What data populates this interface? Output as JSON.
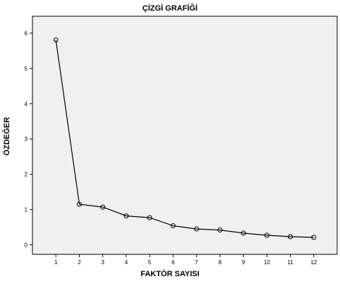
{
  "chart_data": {
    "type": "line",
    "title": "ÇİZGİ GRAFİĞİ",
    "xlabel": "FAKTÖR SAYISI",
    "ylabel": "ÖZDEĞER",
    "x": [
      1,
      2,
      3,
      4,
      5,
      6,
      7,
      8,
      9,
      10,
      11,
      12
    ],
    "series": [
      {
        "values": [
          5.81,
          1.15,
          1.07,
          0.82,
          0.77,
          0.54,
          0.45,
          0.42,
          0.33,
          0.27,
          0.23,
          0.21
        ]
      }
    ],
    "x_ticks": [
      "1",
      "2",
      "3",
      "4",
      "5",
      "6",
      "7",
      "8",
      "9",
      "10",
      "11",
      "12"
    ],
    "y_ticks": [
      "0",
      "1",
      "2",
      "3",
      "4",
      "5",
      "6"
    ],
    "xlim": [
      0,
      13
    ],
    "ylim": [
      -0.27,
      6.48
    ],
    "grid": false,
    "marker": "open-circle",
    "colors": {
      "plot_background": "#f0f0f0",
      "line": "#000000",
      "axis": "#000000"
    }
  }
}
